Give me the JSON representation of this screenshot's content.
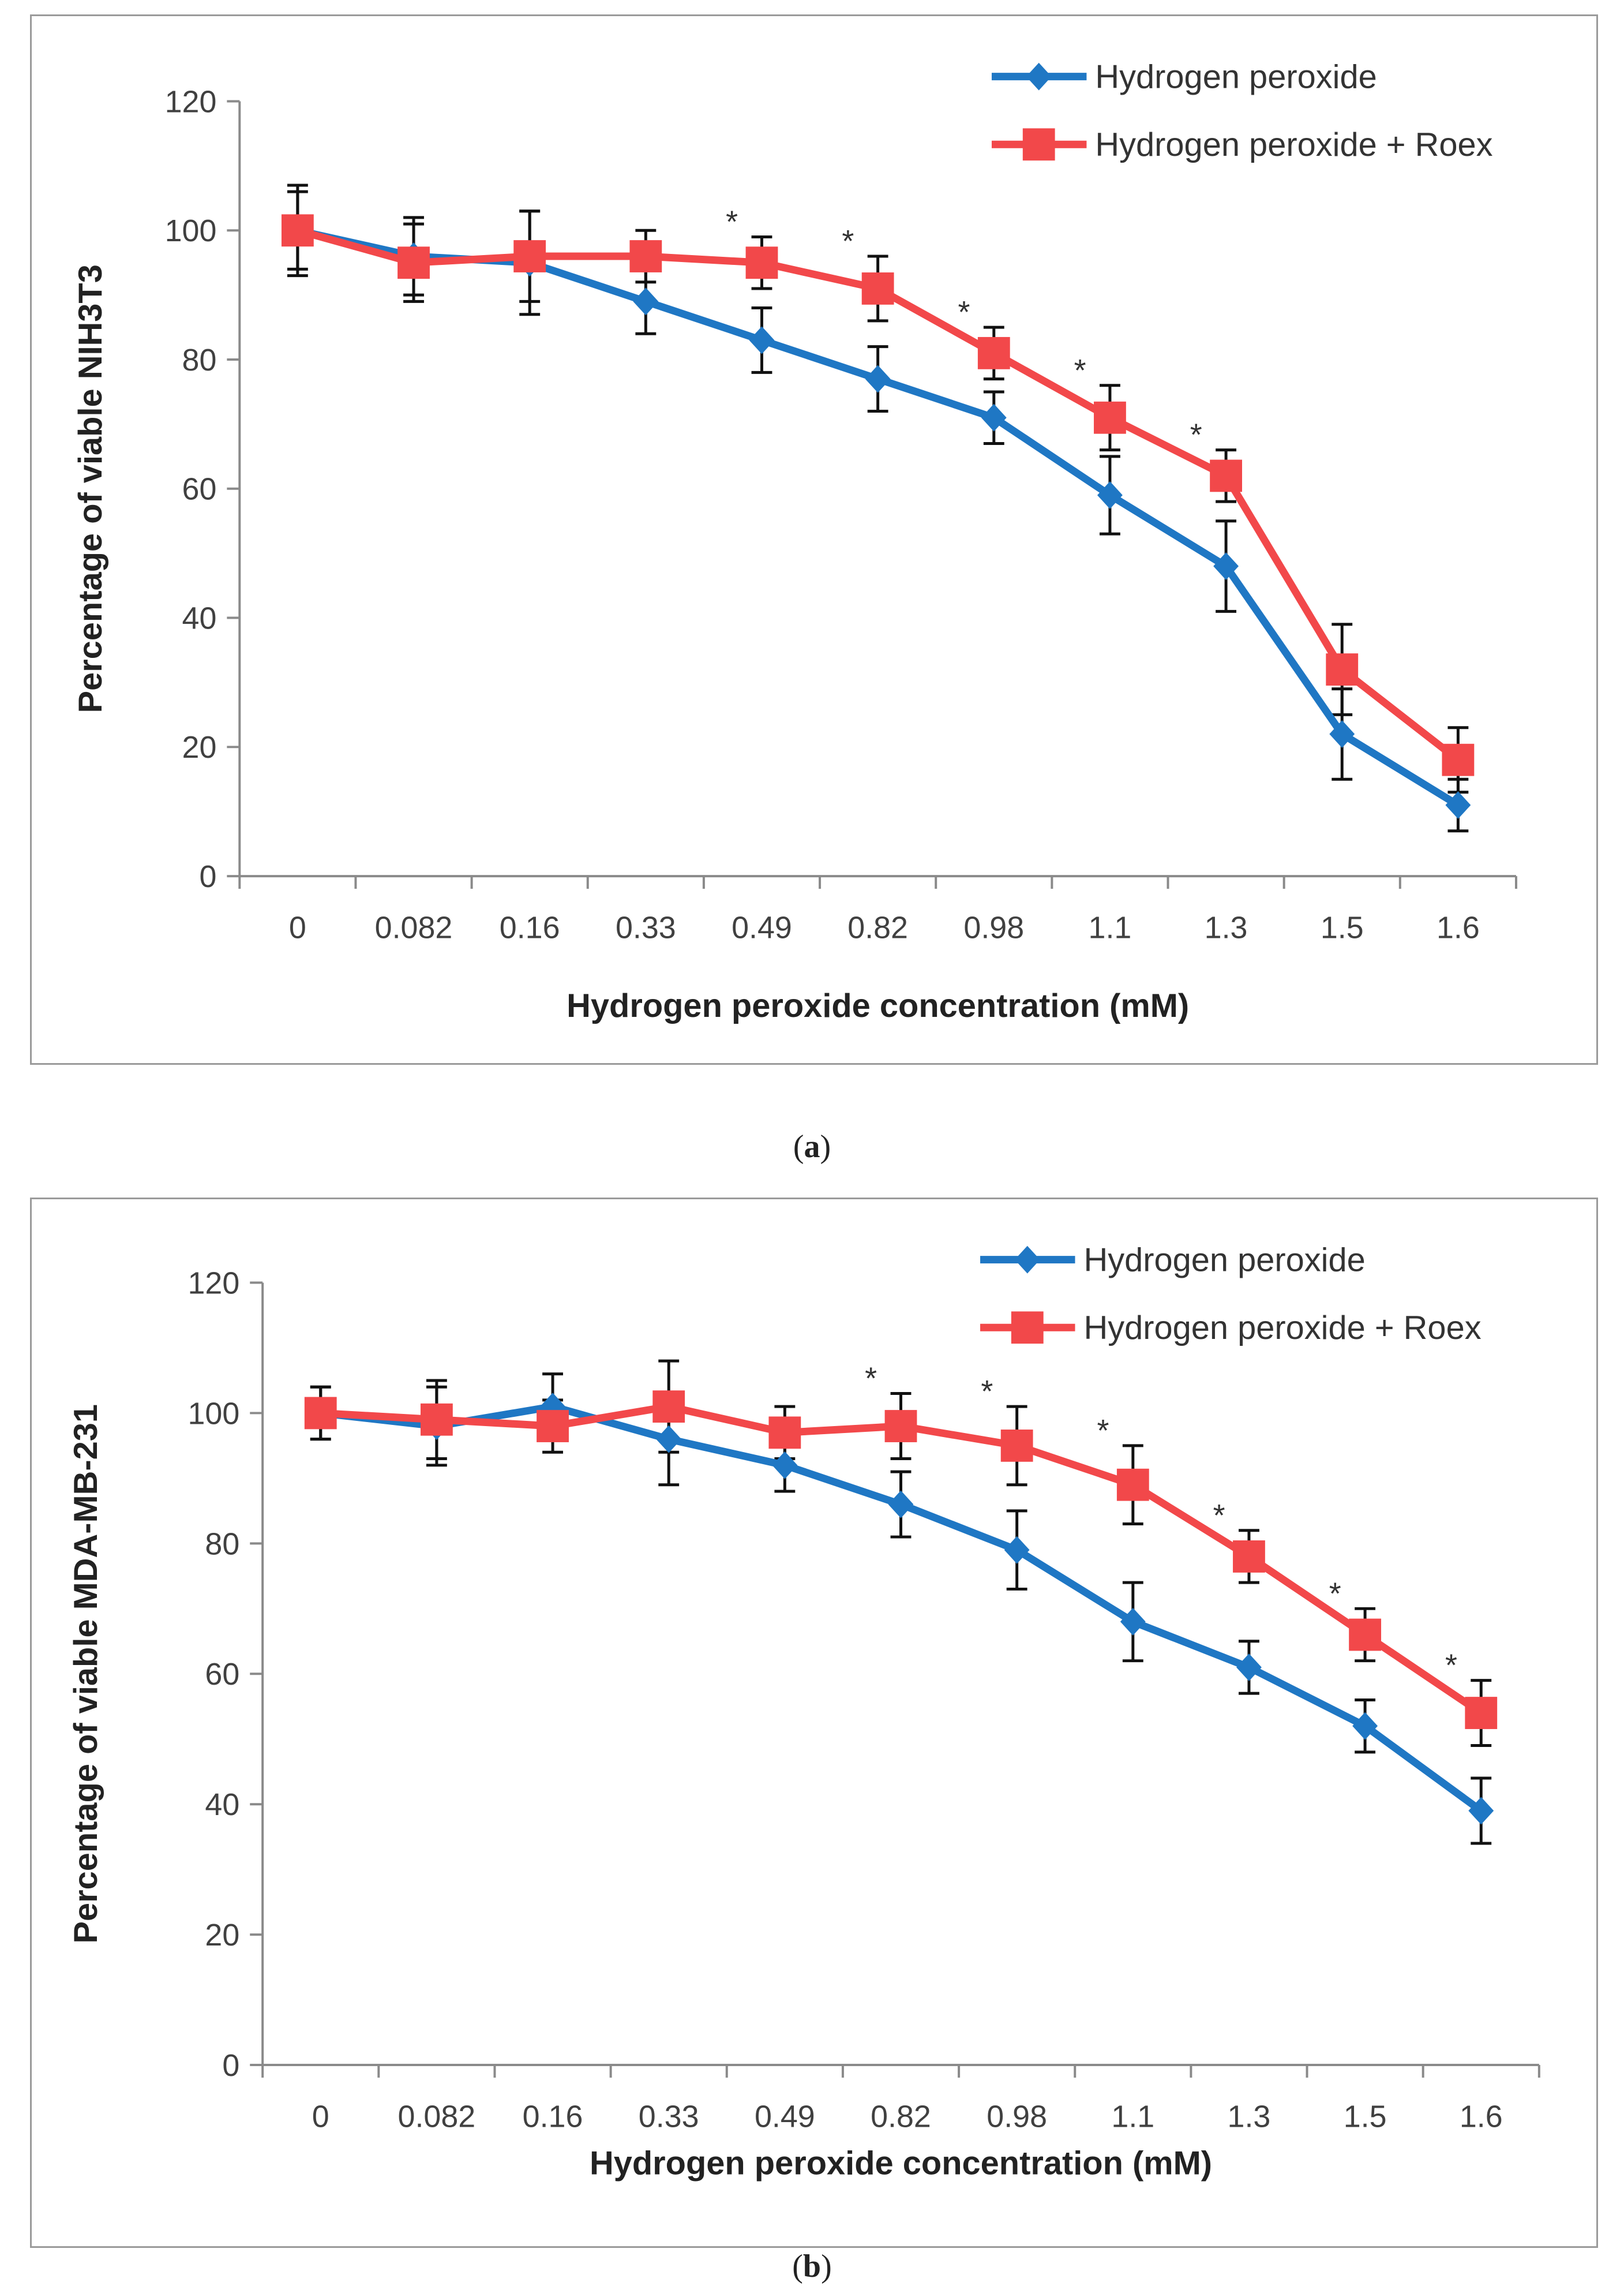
{
  "chart_data": [
    {
      "id": "a",
      "type": "line",
      "caption_letter": "a",
      "xlabel": "Hydrogen peroxide concentration (mM)",
      "ylabel": "Percentage of viable NIH3T3",
      "ylim": [
        0,
        120
      ],
      "yticks": [
        0,
        20,
        40,
        60,
        80,
        100,
        120
      ],
      "categories": [
        "0",
        "0.082",
        "0.16",
        "0.33",
        "0.49",
        "0.82",
        "0.98",
        "1.1",
        "1.3",
        "1.5",
        "1.6"
      ],
      "legend_position": "top-right",
      "series": [
        {
          "name": "Hydrogen peroxide",
          "color": "#1f77c4",
          "marker": "diamond",
          "values": [
            100,
            96,
            95,
            89,
            83,
            77,
            71,
            59,
            48,
            22,
            11
          ],
          "errors": [
            7,
            6,
            8,
            5,
            5,
            5,
            4,
            6,
            7,
            7,
            4
          ]
        },
        {
          "name": "Hydrogen peroxide + Roex",
          "color": "#f2484a",
          "marker": "square",
          "values": [
            100,
            95,
            96,
            96,
            95,
            91,
            81,
            71,
            62,
            32,
            18
          ],
          "errors": [
            6,
            6,
            7,
            4,
            4,
            5,
            4,
            5,
            4,
            7,
            5
          ]
        }
      ],
      "significance": [
        "",
        "",
        "",
        "",
        "*",
        "*",
        "*",
        "*",
        "*",
        "",
        ""
      ]
    },
    {
      "id": "b",
      "type": "line",
      "caption_letter": "b",
      "xlabel": "Hydrogen peroxide concentration (mM)",
      "ylabel": "Percentage of viable MDA-MB-231",
      "ylim": [
        0,
        120
      ],
      "yticks": [
        0,
        20,
        40,
        60,
        80,
        100,
        120
      ],
      "categories": [
        "0",
        "0.082",
        "0.16",
        "0.33",
        "0.49",
        "0.82",
        "0.98",
        "1.1",
        "1.3",
        "1.5",
        "1.6"
      ],
      "legend_position": "top-right",
      "series": [
        {
          "name": "Hydrogen peroxide",
          "color": "#1f77c4",
          "marker": "diamond",
          "values": [
            100,
            98,
            101,
            96,
            92,
            86,
            79,
            68,
            61,
            52,
            39
          ],
          "errors": [
            4,
            6,
            5,
            7,
            4,
            5,
            6,
            6,
            4,
            4,
            5
          ]
        },
        {
          "name": "Hydrogen peroxide + Roex",
          "color": "#f2484a",
          "marker": "square",
          "values": [
            100,
            99,
            98,
            101,
            97,
            98,
            95,
            89,
            78,
            66,
            54
          ],
          "errors": [
            4,
            6,
            4,
            7,
            4,
            5,
            6,
            6,
            4,
            4,
            5
          ]
        }
      ],
      "significance": [
        "",
        "",
        "",
        "",
        "",
        "*",
        "*",
        "*",
        "*",
        "*",
        "*"
      ]
    }
  ]
}
